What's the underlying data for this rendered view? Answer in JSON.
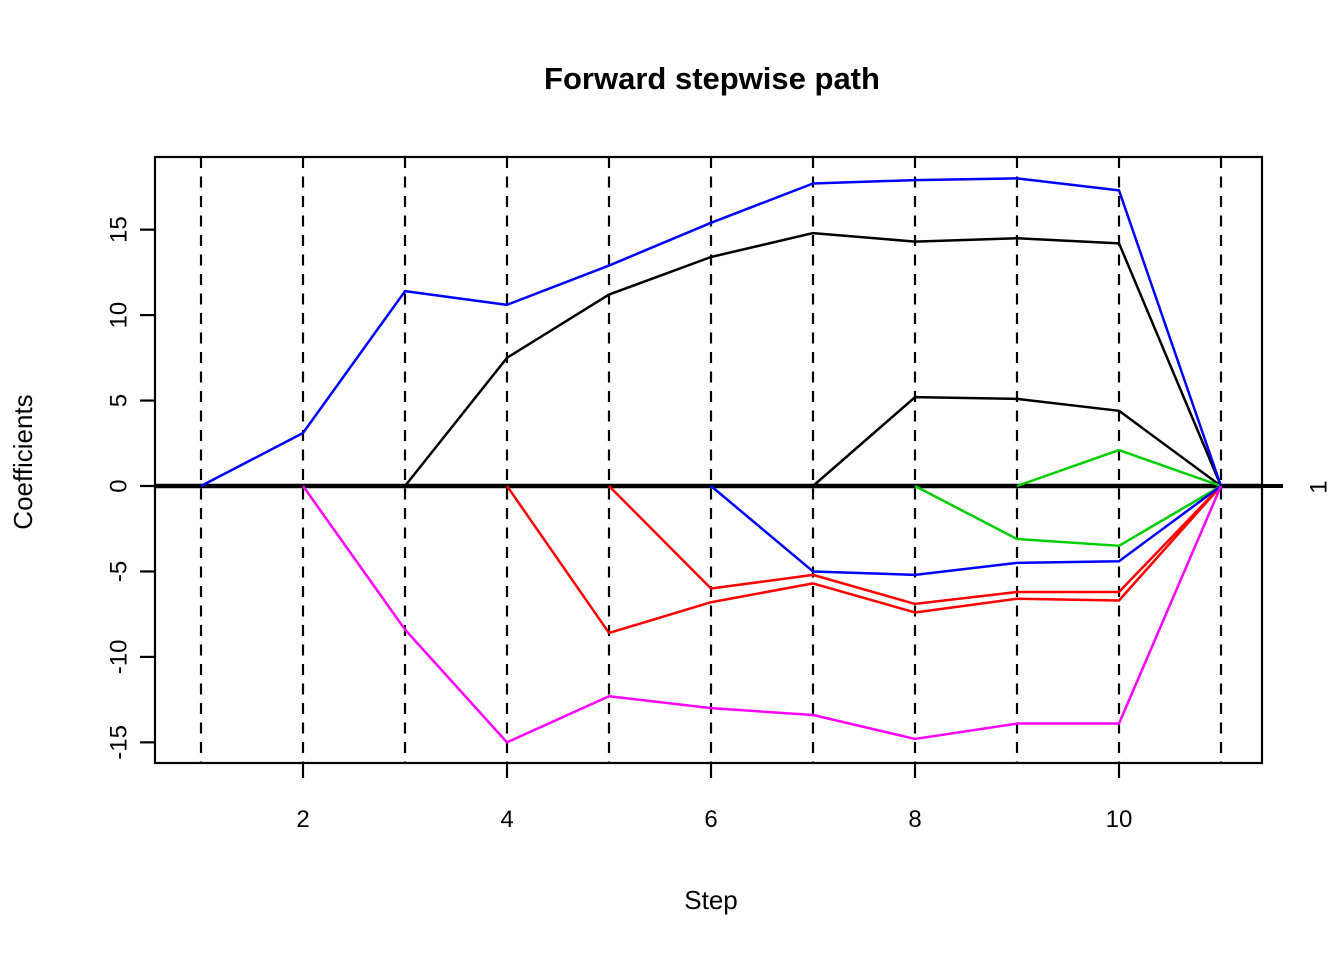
{
  "title": "Forward stepwise path",
  "colors": {
    "axis": "#000000",
    "background": "#ffffff"
  },
  "chart_data": {
    "type": "line",
    "title": "Forward stepwise path",
    "xlabel": "Step",
    "ylabel": "Coefficients",
    "right_axis_label": "1",
    "right_axis_label_at": 0,
    "x_ticks": [
      2,
      4,
      6,
      8,
      10
    ],
    "y_ticks": [
      -15,
      -10,
      -5,
      0,
      5,
      10,
      15
    ],
    "xlim": [
      0.55,
      11.4
    ],
    "ylim": [
      -16.3,
      19.3
    ],
    "grid": "dashed vertical line at every step 1-11",
    "step_gridlines": [
      1,
      2,
      3,
      4,
      5,
      6,
      7,
      8,
      9,
      10,
      11
    ],
    "zero_line": 0,
    "series": [
      {
        "name": "black-1",
        "color": "#000000",
        "points": [
          [
            3,
            0
          ],
          [
            4,
            7.5
          ],
          [
            5,
            11.2
          ],
          [
            6,
            13.4
          ],
          [
            7,
            14.8
          ],
          [
            8,
            14.3
          ],
          [
            9,
            14.5
          ],
          [
            10,
            14.2
          ],
          [
            11,
            0
          ]
        ]
      },
      {
        "name": "black-2",
        "color": "#000000",
        "points": [
          [
            7,
            0
          ],
          [
            8,
            5.2
          ],
          [
            9,
            5.1
          ],
          [
            10,
            4.4
          ],
          [
            11,
            0
          ]
        ]
      },
      {
        "name": "red-1",
        "color": "#FF0000",
        "points": [
          [
            4,
            0
          ],
          [
            5,
            -8.6
          ],
          [
            6,
            -6.8
          ],
          [
            7,
            -5.7
          ],
          [
            8,
            -7.4
          ],
          [
            9,
            -6.6
          ],
          [
            10,
            -6.7
          ],
          [
            11,
            0
          ]
        ]
      },
      {
        "name": "red-2",
        "color": "#FF0000",
        "points": [
          [
            5,
            0
          ],
          [
            6,
            -6.0
          ],
          [
            7,
            -5.2
          ],
          [
            8,
            -6.9
          ],
          [
            9,
            -6.2
          ],
          [
            10,
            -6.2
          ],
          [
            11,
            0
          ]
        ]
      },
      {
        "name": "green-1",
        "color": "#00CD00",
        "points": [
          [
            9,
            0
          ],
          [
            10,
            2.1
          ],
          [
            11,
            0
          ]
        ]
      },
      {
        "name": "green-2",
        "color": "#00CD00",
        "points": [
          [
            8,
            0
          ],
          [
            9,
            -3.1
          ],
          [
            10,
            -3.5
          ],
          [
            11,
            0
          ]
        ]
      },
      {
        "name": "blue-1",
        "color": "#0000FF",
        "points": [
          [
            1,
            0
          ],
          [
            2,
            3.1
          ],
          [
            3,
            11.4
          ],
          [
            4,
            10.6
          ],
          [
            5,
            12.9
          ],
          [
            6,
            15.4
          ],
          [
            7,
            17.7
          ],
          [
            8,
            17.9
          ],
          [
            9,
            18.0
          ],
          [
            10,
            17.3
          ],
          [
            11,
            0
          ]
        ]
      },
      {
        "name": "blue-2",
        "color": "#0000FF",
        "points": [
          [
            6,
            0
          ],
          [
            7,
            -5.0
          ],
          [
            8,
            -5.2
          ],
          [
            9,
            -4.5
          ],
          [
            10,
            -4.4
          ],
          [
            11,
            0
          ]
        ]
      },
      {
        "name": "magenta-1",
        "color": "#FF00FF",
        "points": [
          [
            2,
            0
          ],
          [
            3,
            -8.4
          ],
          [
            4,
            -15.0
          ],
          [
            5,
            -12.3
          ],
          [
            6,
            -13.0
          ],
          [
            7,
            -13.4
          ],
          [
            8,
            -14.8
          ],
          [
            9,
            -13.9
          ],
          [
            10,
            -13.9
          ],
          [
            11,
            0
          ]
        ]
      }
    ]
  }
}
